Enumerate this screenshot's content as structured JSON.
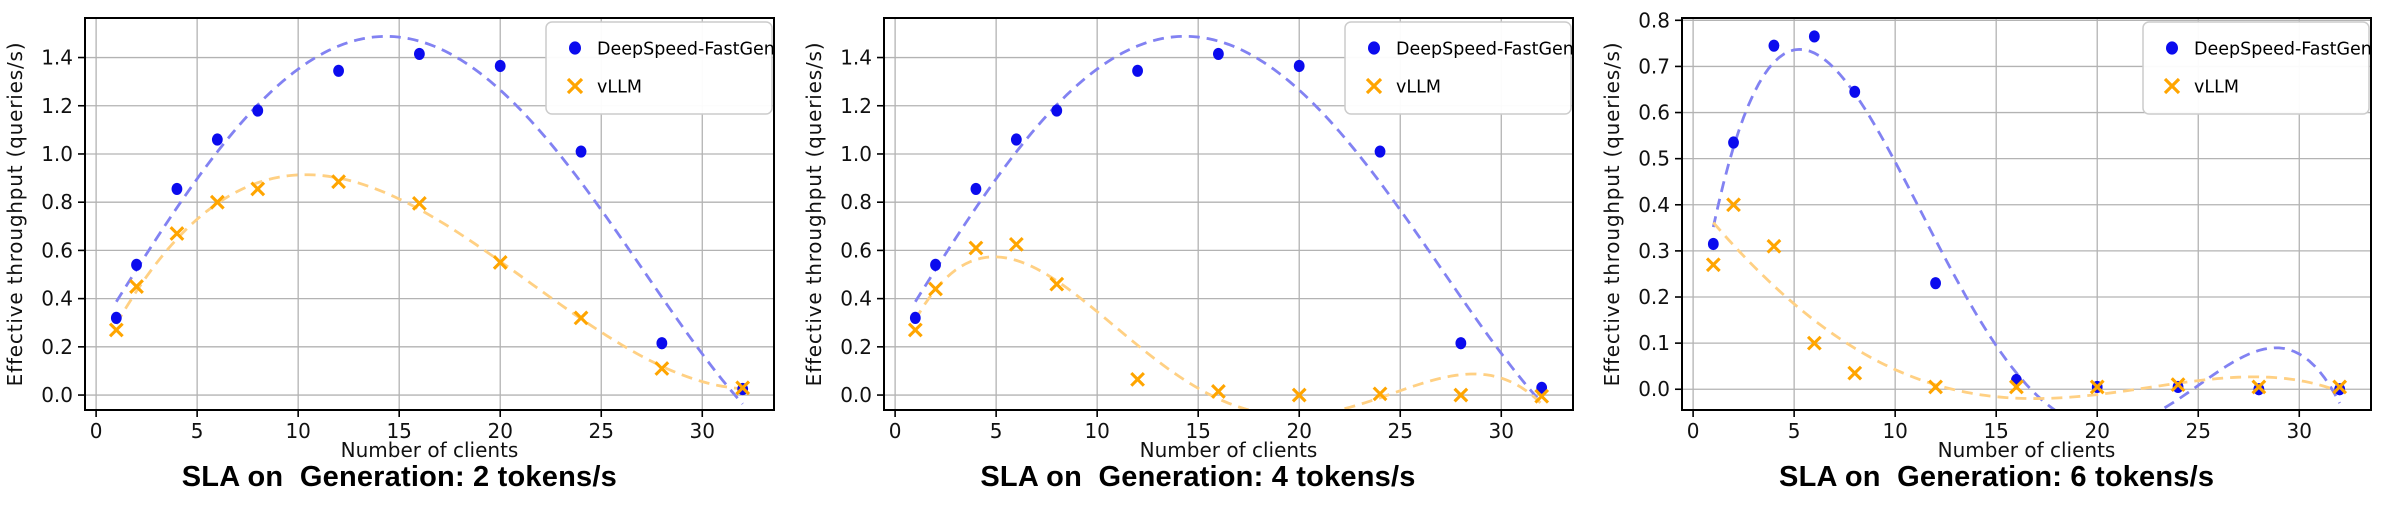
{
  "figure": {
    "background": "#ffffff",
    "panel_count": 3
  },
  "palette": {
    "deepspeed_marker": "#0b0bee",
    "deepspeed_fit": "#8282f2",
    "vllm_marker": "#ffa500",
    "vllm_fit": "#ffd083",
    "grid": "#b3b3b3",
    "spine": "#000000",
    "tick_label": "#111111",
    "legend_border": "#cccccc",
    "legend_bg": "#ffffff"
  },
  "chart_data": [
    {
      "type": "scatter",
      "title": "SLA on  Generation: 2 tokens/s",
      "xlabel": "Number of clients",
      "ylabel": "Effective throughput (queries/s)",
      "x": [
        1,
        2,
        4,
        6,
        8,
        12,
        16,
        20,
        24,
        28,
        32
      ],
      "series": [
        {
          "name": "DeepSpeed-FastGen",
          "marker": "circle",
          "color": "#0b0bee",
          "fit_color": "#8282f2",
          "values": [
            0.32,
            0.54,
            0.855,
            1.06,
            1.18,
            1.345,
            1.415,
            1.365,
            1.01,
            0.215,
            0.025
          ]
        },
        {
          "name": "vLLM",
          "marker": "x",
          "color": "#ffa500",
          "fit_color": "#ffd083",
          "values": [
            0.27,
            0.45,
            0.67,
            0.8,
            0.855,
            0.885,
            0.795,
            0.55,
            0.32,
            0.11,
            0.03
          ]
        }
      ],
      "fit": "poly4-dashed",
      "xlim": [
        -0.55,
        33.55
      ],
      "ylim": [
        -0.062,
        1.564
      ],
      "xticks": [
        0,
        5,
        10,
        15,
        20,
        25,
        30
      ],
      "yticks": [
        0.0,
        0.2,
        0.4,
        0.6,
        0.8,
        1.0,
        1.2,
        1.4
      ],
      "grid": true,
      "legend_position": "upper right"
    },
    {
      "type": "scatter",
      "title": "SLA on  Generation: 4 tokens/s",
      "xlabel": "Number of clients",
      "ylabel": "Effective throughput (queries/s)",
      "x": [
        1,
        2,
        4,
        6,
        8,
        12,
        16,
        20,
        24,
        28,
        32
      ],
      "series": [
        {
          "name": "DeepSpeed-FastGen",
          "marker": "circle",
          "color": "#0b0bee",
          "fit_color": "#8282f2",
          "values": [
            0.32,
            0.54,
            0.855,
            1.06,
            1.18,
            1.345,
            1.415,
            1.365,
            1.01,
            0.215,
            0.03
          ]
        },
        {
          "name": "vLLM",
          "marker": "x",
          "color": "#ffa500",
          "fit_color": "#ffd083",
          "values": [
            0.27,
            0.44,
            0.61,
            0.625,
            0.46,
            0.065,
            0.015,
            0.0,
            0.005,
            0.0,
            -0.005
          ]
        }
      ],
      "fit": "poly4-dashed",
      "xlim": [
        -0.55,
        33.55
      ],
      "ylim": [
        -0.062,
        1.564
      ],
      "xticks": [
        0,
        5,
        10,
        15,
        20,
        25,
        30
      ],
      "yticks": [
        0.0,
        0.2,
        0.4,
        0.6,
        0.8,
        1.0,
        1.2,
        1.4
      ],
      "grid": true,
      "legend_position": "upper right"
    },
    {
      "type": "scatter",
      "title": "SLA on  Generation: 6 tokens/s",
      "xlabel": "Number of clients",
      "ylabel": "Effective throughput (queries/s)",
      "x": [
        1,
        2,
        4,
        6,
        8,
        12,
        16,
        20,
        24,
        28,
        32
      ],
      "series": [
        {
          "name": "DeepSpeed-FastGen",
          "marker": "circle",
          "color": "#0b0bee",
          "fit_color": "#8282f2",
          "values": [
            0.315,
            0.535,
            0.745,
            0.765,
            0.645,
            0.23,
            0.02,
            0.005,
            0.005,
            0.0,
            0.0
          ]
        },
        {
          "name": "vLLM",
          "marker": "x",
          "color": "#ffa500",
          "fit_color": "#ffd083",
          "values": [
            0.27,
            0.4,
            0.31,
            0.1,
            0.035,
            0.005,
            0.005,
            0.005,
            0.01,
            0.005,
            0.005
          ]
        }
      ],
      "fit": "poly4-dashed",
      "xlim": [
        -0.55,
        33.55
      ],
      "ylim": [
        -0.045,
        0.805
      ],
      "xticks": [
        0,
        5,
        10,
        15,
        20,
        25,
        30
      ],
      "yticks": [
        0.0,
        0.1,
        0.2,
        0.3,
        0.4,
        0.5,
        0.6,
        0.7,
        0.8
      ],
      "grid": true,
      "legend_position": "upper right"
    }
  ]
}
